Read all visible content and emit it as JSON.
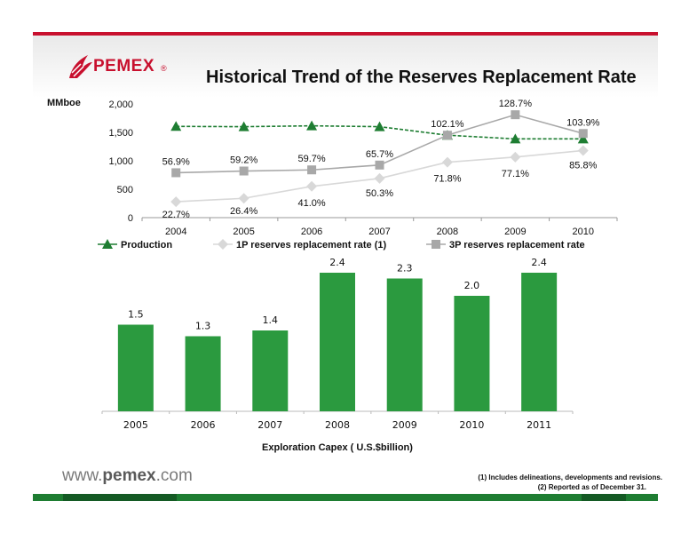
{
  "header": {
    "title": "Historical Trend of the Reserves Replacement Rate",
    "logo_text": "PEMEX",
    "logo_reg": "®"
  },
  "chart_data": [
    {
      "type": "line",
      "ylabel": "MMboe",
      "ylim": [
        0,
        2000
      ],
      "yticks": [
        "0",
        "500",
        "1,000",
        "1,500",
        "2,000"
      ],
      "categories": [
        "2004",
        "2005",
        "2006",
        "2007",
        "2008",
        "2009",
        "2010"
      ],
      "legend_position": "bottom",
      "series": [
        {
          "name": "Production",
          "color": "#1e7d32",
          "marker": "triangle",
          "values": [
            1605,
            1600,
            1615,
            1600,
            1450,
            1385,
            1385
          ]
        },
        {
          "name": "1P reserves replacement rate (1)",
          "color": "#d8d8d8",
          "marker": "diamond",
          "values": [
            280,
            340,
            550,
            690,
            975,
            1065,
            1180
          ],
          "labels": [
            "22.7%",
            "26.4%",
            "41.0%",
            "50.3%",
            "71.8%",
            "77.1%",
            "85.8%"
          ]
        },
        {
          "name": "3P reserves replacement rate",
          "color": "#a8a8a8",
          "marker": "square",
          "values": [
            790,
            820,
            840,
            925,
            1450,
            1810,
            1480
          ],
          "labels": [
            "56.9%",
            "59.2%",
            "59.7%",
            "65.7%",
            "102.1%",
            "128.7%",
            "103.9%"
          ]
        }
      ]
    },
    {
      "type": "bar",
      "xlabel": "Exploration Capex ( U.S.$billion)",
      "categories": [
        "2005",
        "2006",
        "2007",
        "2008",
        "2009",
        "2010",
        "2011"
      ],
      "values": [
        1.5,
        1.3,
        1.4,
        2.4,
        2.3,
        2.0,
        2.4
      ],
      "value_labels": [
        "1.5",
        "1.3",
        "1.4",
        "2.4",
        "2.3",
        "2.0",
        "2.4"
      ],
      "color": "#2b9a3f"
    }
  ],
  "footer": {
    "url_prefix": "www.",
    "url_brand": "pemex",
    "url_suffix": ".com",
    "note1": "(1)   Includes delineations, developments and revisions.",
    "note2": "(2)   Reported as of December 31."
  }
}
